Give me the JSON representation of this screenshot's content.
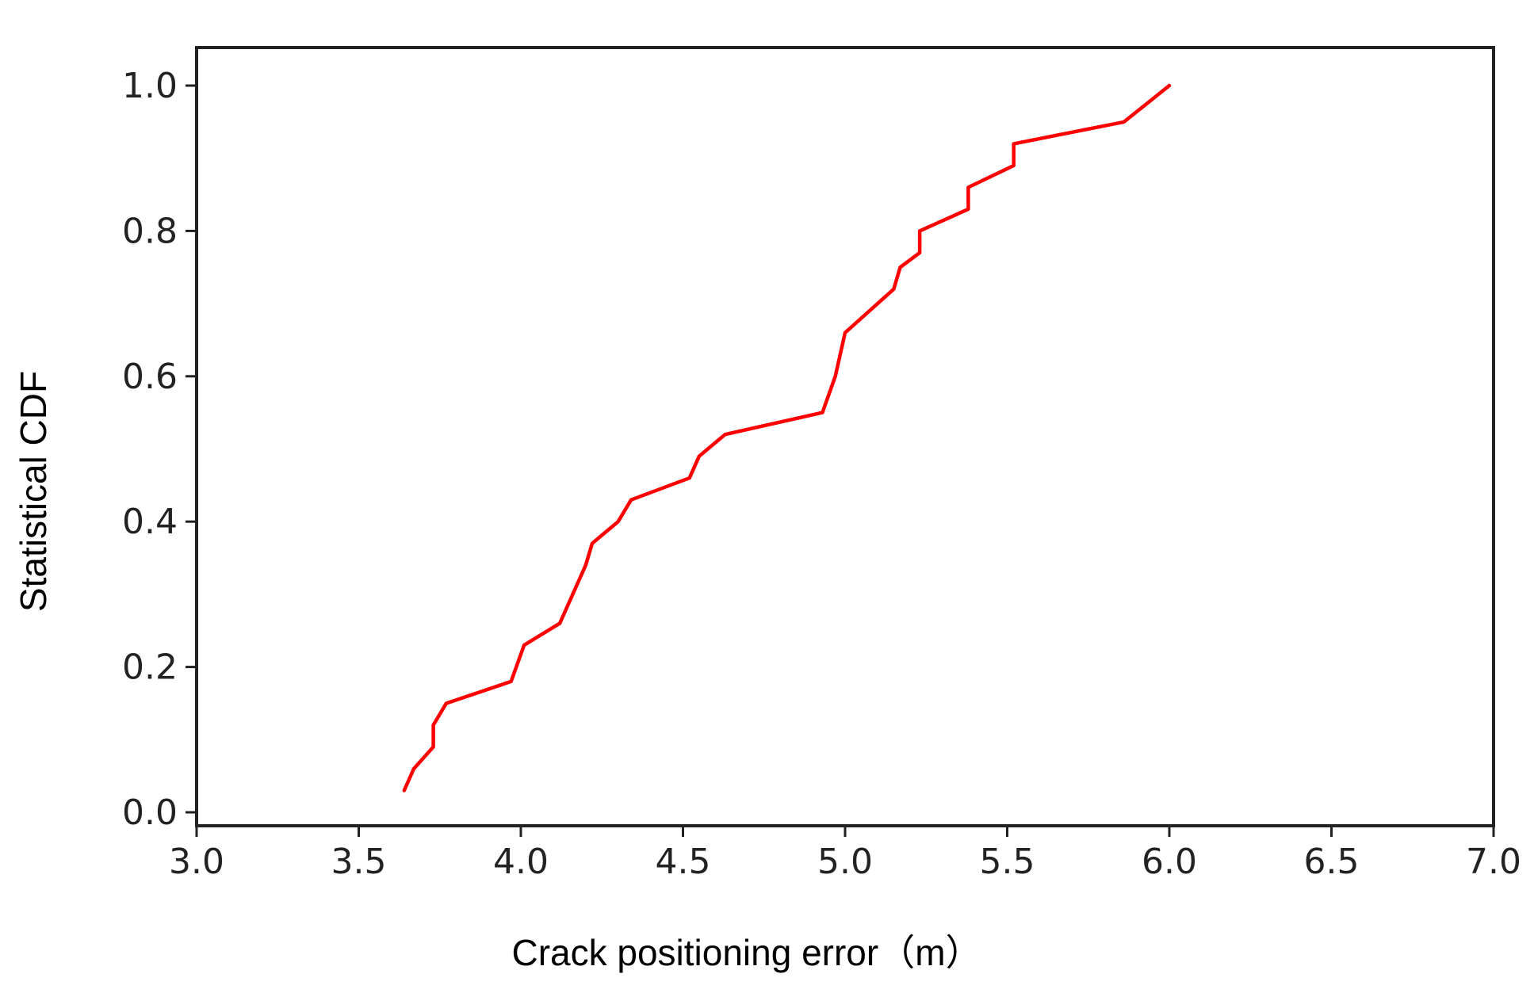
{
  "chart_data": {
    "type": "line",
    "xlabel": "Crack positioning error（m）",
    "ylabel": "Statistical CDF",
    "xlim": [
      3.0,
      7.0
    ],
    "ylim": [
      0.0,
      1.0
    ],
    "x_ticks": [
      "3.0",
      "3.5",
      "4.0",
      "4.5",
      "5.0",
      "5.5",
      "6.0",
      "6.5",
      "7.0"
    ],
    "y_ticks": [
      "0.0",
      "0.2",
      "0.4",
      "0.6",
      "0.8",
      "1.0"
    ],
    "grid": false,
    "legend": "none",
    "series": [
      {
        "color": "#ff0000",
        "x": [
          3.64,
          3.67,
          3.73,
          3.73,
          3.77,
          3.97,
          4.01,
          4.12,
          4.2,
          4.22,
          4.3,
          4.34,
          4.52,
          4.55,
          4.63,
          4.93,
          4.97,
          5.0,
          5.15,
          5.17,
          5.23,
          5.23,
          5.38,
          5.38,
          5.52,
          5.52,
          5.86,
          6.0
        ],
        "y": [
          0.03,
          0.06,
          0.09,
          0.12,
          0.15,
          0.18,
          0.23,
          0.26,
          0.34,
          0.37,
          0.4,
          0.43,
          0.46,
          0.49,
          0.52,
          0.55,
          0.6,
          0.66,
          0.72,
          0.75,
          0.77,
          0.8,
          0.83,
          0.86,
          0.89,
          0.92,
          0.95,
          1.0
        ]
      }
    ]
  }
}
